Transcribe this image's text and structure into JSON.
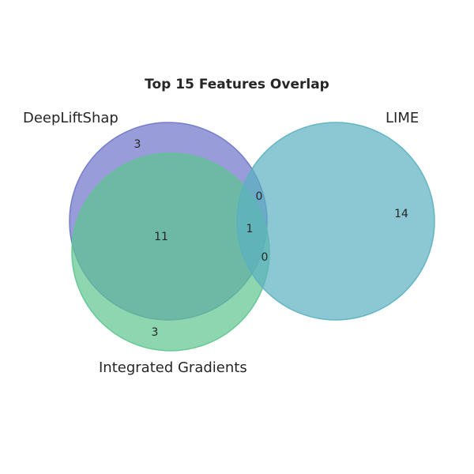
{
  "title": "Top 15 Features Overlap",
  "sets": {
    "a": {
      "name": "DeepLiftShap",
      "color": "#6c74c9"
    },
    "b": {
      "name": "LIME",
      "color": "#5ab0c0"
    },
    "c": {
      "name": "Integrated Gradients",
      "color": "#5cc58e"
    }
  },
  "regions": {
    "a_only": "3",
    "b_only": "14",
    "c_only": "3",
    "a_c": "11",
    "a_b": "0",
    "b_c": "0",
    "a_b_c": "1"
  }
}
